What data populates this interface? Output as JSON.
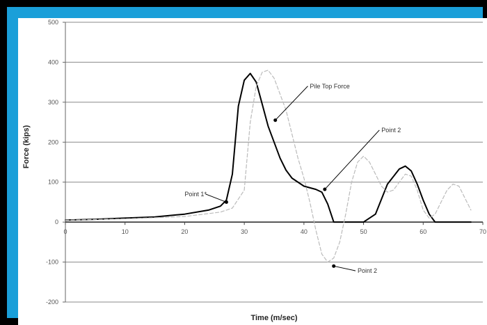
{
  "chart_data": {
    "type": "line",
    "title": "",
    "xlabel": "Time (m/sec)",
    "ylabel": "Force (kips)",
    "xlim": [
      0,
      70
    ],
    "ylim": [
      -200,
      500
    ],
    "x_ticks": [
      "0",
      "10",
      "20",
      "30",
      "40",
      "50",
      "60",
      "70"
    ],
    "y_ticks": [
      "500",
      "400",
      "300",
      "200",
      "100",
      "0",
      "-100",
      "-200"
    ],
    "grid": "horizontal",
    "series": [
      {
        "name": "",
        "color": "#000000",
        "style": "solid",
        "x": [
          0,
          5,
          10,
          15,
          20,
          24,
          26,
          27,
          28,
          29,
          30,
          31,
          32,
          33,
          34,
          35,
          36,
          37,
          38,
          40,
          42,
          43,
          44,
          45,
          50,
          52,
          54,
          56,
          57,
          58,
          59,
          60,
          61,
          62,
          63,
          65,
          68
        ],
        "y": [
          5,
          7,
          10,
          13,
          20,
          30,
          40,
          55,
          120,
          290,
          355,
          372,
          350,
          295,
          240,
          200,
          160,
          130,
          110,
          90,
          82,
          75,
          45,
          0,
          0,
          20,
          95,
          133,
          140,
          128,
          95,
          55,
          20,
          0,
          0,
          0,
          0
        ]
      },
      {
        "name": "",
        "color": "#bbbbbb",
        "style": "dashed",
        "x": [
          0,
          10,
          20,
          26,
          28,
          30,
          31,
          32,
          33,
          34,
          35,
          36,
          37,
          38,
          39,
          40,
          41,
          42,
          43,
          44,
          45,
          46,
          47,
          48,
          49,
          50,
          51,
          52,
          53,
          54,
          55,
          56,
          57,
          58,
          59,
          60,
          61,
          62,
          63,
          64,
          65,
          66,
          67,
          68
        ],
        "y": [
          5,
          8,
          14,
          25,
          35,
          80,
          250,
          340,
          375,
          380,
          360,
          320,
          280,
          220,
          160,
          110,
          50,
          -20,
          -80,
          -100,
          -90,
          -50,
          20,
          100,
          150,
          165,
          150,
          120,
          90,
          75,
          80,
          100,
          120,
          115,
          80,
          30,
          10,
          20,
          50,
          80,
          95,
          90,
          60,
          30
        ]
      }
    ],
    "annotations": [
      {
        "text": "Pile Top Force",
        "x": 35.2,
        "y": 255,
        "tx": 41,
        "ty": 335
      },
      {
        "text": "Point 2",
        "x": 43.5,
        "y": 82,
        "tx": 53,
        "ty": 225
      },
      {
        "text": "Point 1*",
        "x": 27,
        "y": 50,
        "tx": 20,
        "ty": 65
      },
      {
        "text": "Point 2",
        "x": 45,
        "y": -110,
        "tx": 49,
        "ty": -127
      }
    ]
  }
}
